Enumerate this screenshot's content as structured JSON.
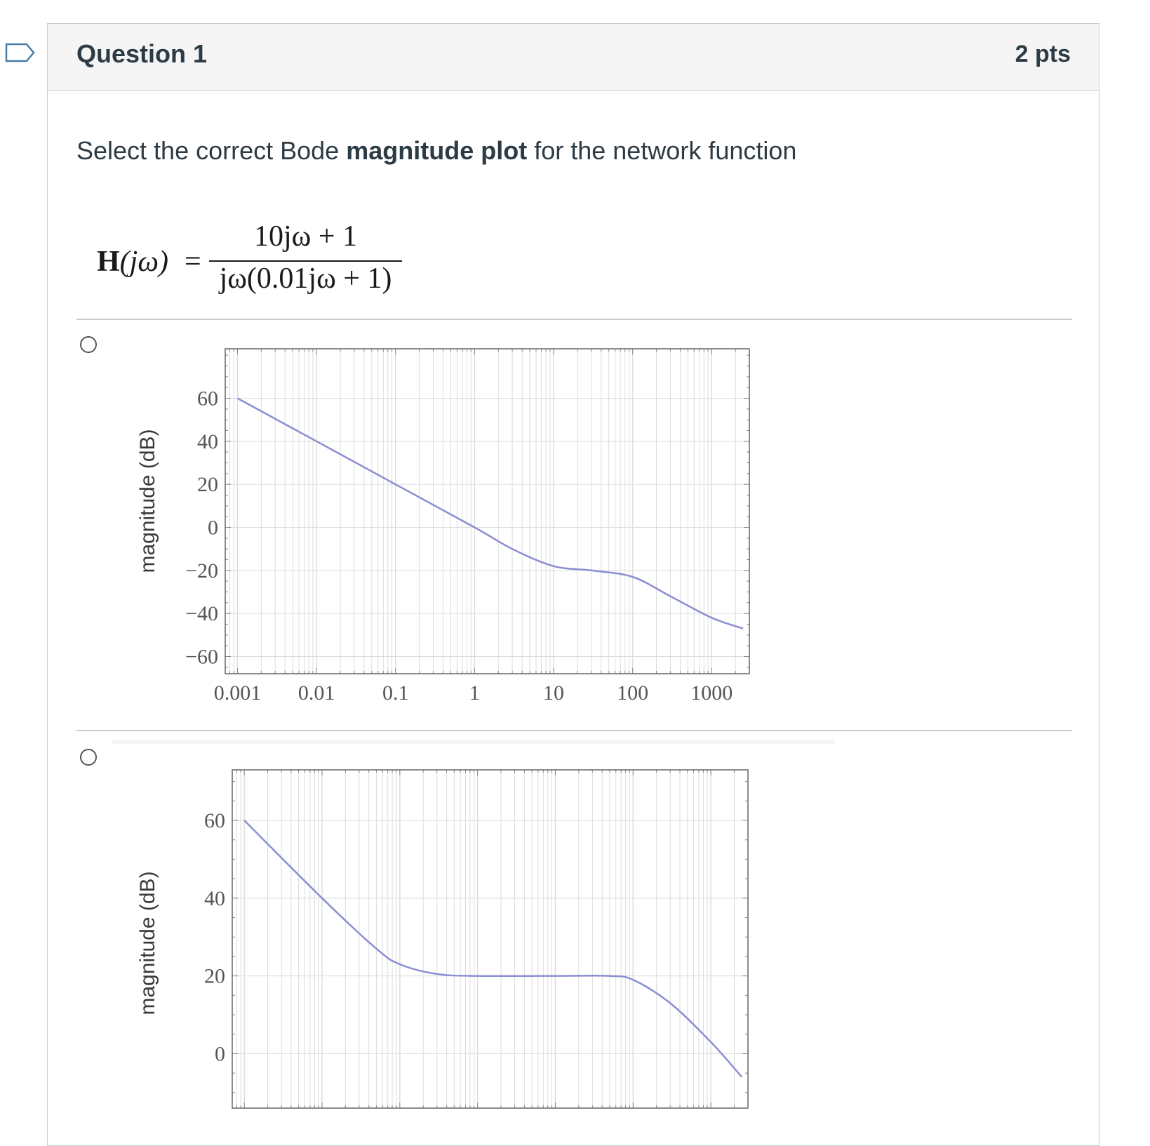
{
  "question": {
    "title": "Question 1",
    "points": "2 pts",
    "text_before": "Select the correct Bode ",
    "text_bold": "magnitude plot",
    "text_after": " for the network function",
    "equation": {
      "lhs_symbol": "H",
      "lhs_arg": "(jω)",
      "equals": "=",
      "numerator": "10jω + 1",
      "denominator": "jω(0.01jω + 1)"
    }
  },
  "colors": {
    "curve": "#8a8fd1",
    "grid": "#dcdcdc",
    "frame": "#666666",
    "tick_text": "#555555"
  },
  "chart_data": [
    {
      "type": "line",
      "x_scale": "log",
      "x_tick_labels": [
        "0.001",
        "0.01",
        "0.1",
        "1",
        "10",
        "100",
        "1000"
      ],
      "x_ticks": [
        0.001,
        0.01,
        0.1,
        1,
        10,
        100,
        1000
      ],
      "y_tick_labels": [
        "60",
        "40",
        "20",
        "0",
        "−20",
        "−40",
        "−60"
      ],
      "y_ticks": [
        60,
        40,
        20,
        0,
        -20,
        -40,
        -60
      ],
      "ylabel": "magnitude  (dB)",
      "xlim": [
        0.0007,
        3000
      ],
      "ylim": [
        -68,
        83
      ],
      "grid": true,
      "series": [
        {
          "x": [
            0.001,
            0.01,
            0.1,
            1,
            3,
            10,
            30,
            100,
            300,
            1000,
            2500
          ],
          "y": [
            60,
            40,
            20,
            0,
            -10,
            -18,
            -20,
            -23,
            -32,
            -42,
            -47
          ]
        }
      ]
    },
    {
      "type": "line",
      "x_scale": "log",
      "x_tick_labels": [],
      "x_ticks": [
        0.001,
        0.01,
        0.1,
        1,
        10,
        100,
        1000
      ],
      "y_tick_labels": [
        "60",
        "40",
        "20",
        "0"
      ],
      "y_ticks": [
        60,
        40,
        20,
        0
      ],
      "ylabel": "magnitude  (dB)",
      "xlim": [
        0.0007,
        3000
      ],
      "ylim": [
        -14,
        73
      ],
      "grid": true,
      "series": [
        {
          "x": [
            0.001,
            0.01,
            0.05,
            0.1,
            0.3,
            1,
            10,
            50,
            100,
            300,
            1000,
            2500
          ],
          "y": [
            60,
            40,
            27,
            23,
            20.5,
            20,
            20,
            20,
            19,
            13,
            3,
            -6
          ]
        }
      ]
    }
  ]
}
